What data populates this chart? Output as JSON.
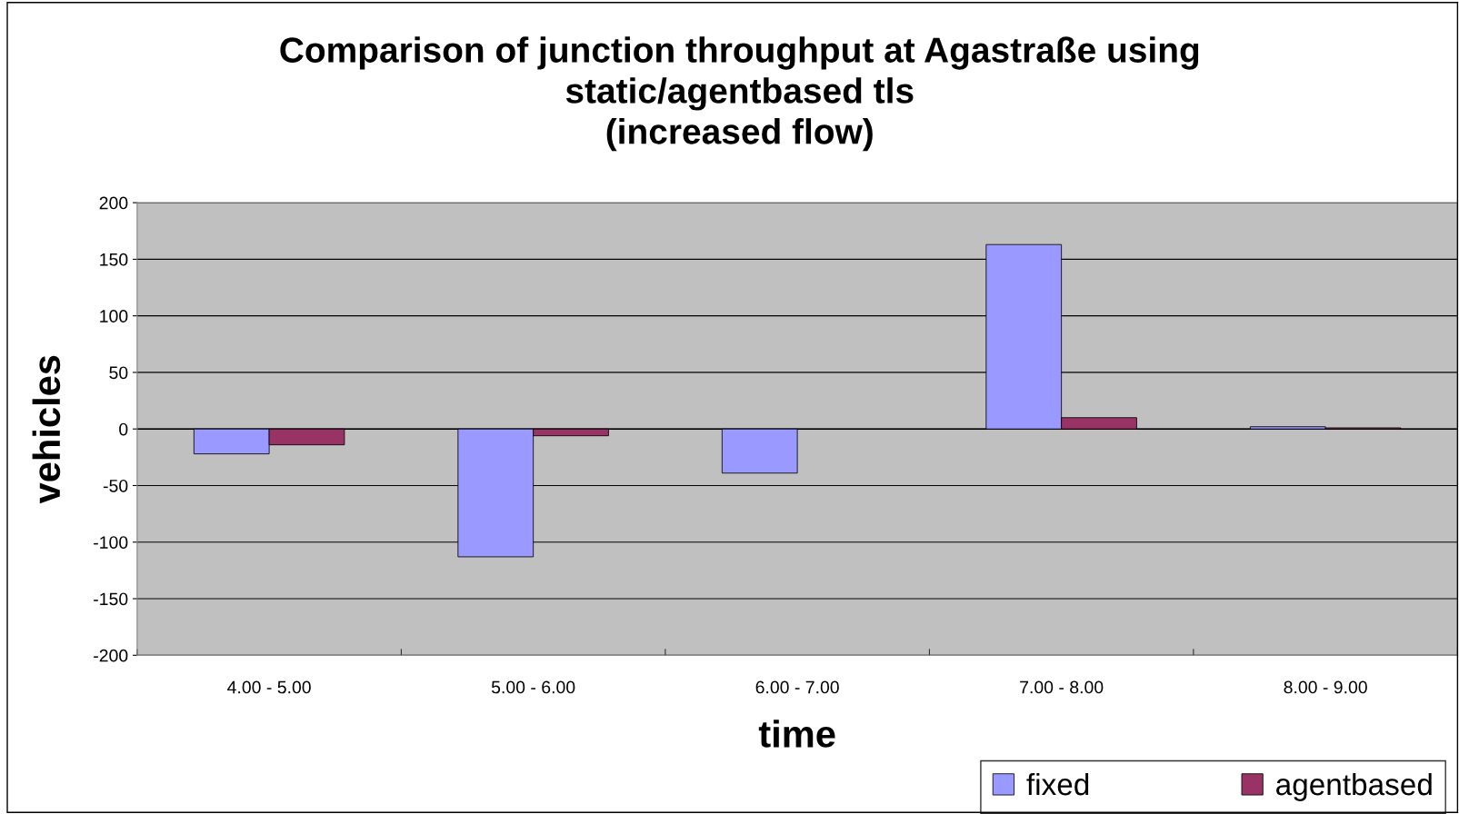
{
  "chart_data": {
    "type": "bar",
    "title": "Comparison of junction throughput at Agastraße using\nstatic/agentbased tls\n(increased flow)",
    "xlabel": "time",
    "ylabel": "vehicles",
    "categories": [
      "4.00 - 5.00",
      "5.00 - 6.00",
      "6.00 - 7.00",
      "7.00 - 8.00",
      "8.00 - 9.00"
    ],
    "series": [
      {
        "name": "fixed",
        "color": "#9999ff",
        "values": [
          -22,
          -113,
          -39,
          163,
          2
        ]
      },
      {
        "name": "agentbased",
        "color": "#993366",
        "values": [
          -14,
          -6,
          null,
          10,
          1
        ]
      }
    ],
    "ylim": [
      -200,
      200
    ],
    "yticks": [
      -200,
      -150,
      -100,
      -50,
      0,
      50,
      100,
      150,
      200
    ],
    "grid": "y",
    "legend": "bottom right"
  }
}
